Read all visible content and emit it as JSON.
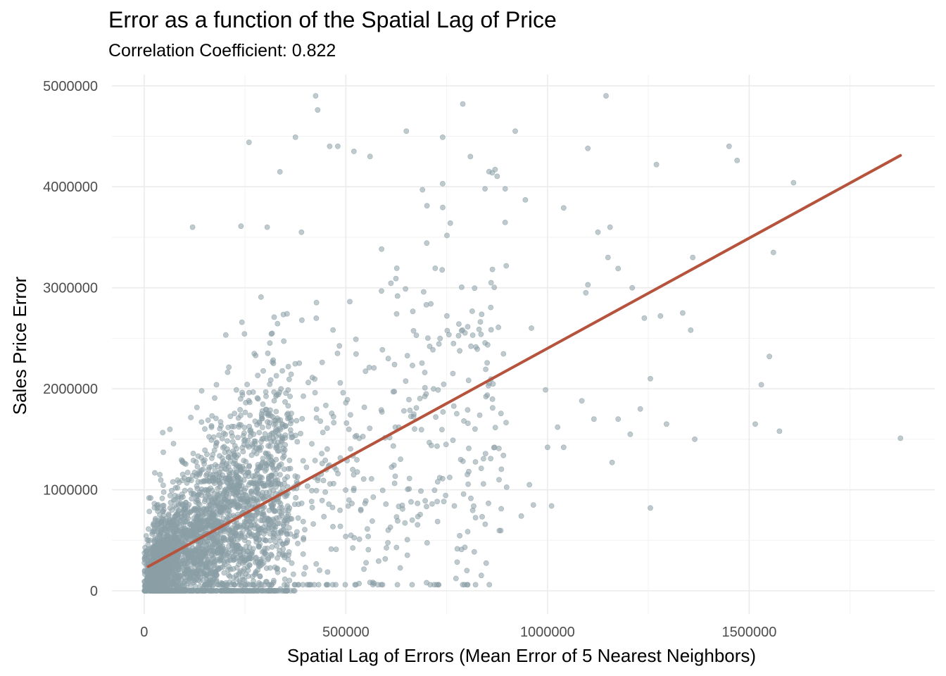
{
  "chart_data": {
    "type": "scatter",
    "title": "Error as a function of the Spatial Lag of Price",
    "subtitle": "Correlation Coefficient: 0.822",
    "xlabel": "Spatial Lag of Errors (Mean Error of 5 Nearest Neighbors)",
    "ylabel": "Sales Price Error",
    "xlim": [
      -80000,
      1960000
    ],
    "ylim": [
      -230000,
      5110000
    ],
    "xticks": [
      0,
      500000,
      1000000,
      1500000
    ],
    "xtick_labels": [
      "0",
      "500000",
      "1000000",
      "1500000"
    ],
    "yticks": [
      0,
      1000000,
      2000000,
      3000000,
      4000000,
      5000000
    ],
    "ytick_labels": [
      "0",
      "1000000",
      "2000000",
      "3000000",
      "4000000",
      "5000000"
    ],
    "grid": true,
    "legend": "none",
    "point_color": "#8a9ea5",
    "line_color": "#b5533c",
    "trend_line": {
      "x": [
        10000,
        1875000
      ],
      "y": [
        240000,
        4310000
      ]
    },
    "sampled_outer_points": [
      {
        "x": 425000,
        "y": 4900000
      },
      {
        "x": 430000,
        "y": 4760000
      },
      {
        "x": 790000,
        "y": 4820000
      },
      {
        "x": 1145000,
        "y": 4900000
      },
      {
        "x": 650000,
        "y": 4550000
      },
      {
        "x": 740000,
        "y": 4490000
      },
      {
        "x": 920000,
        "y": 4550000
      },
      {
        "x": 375000,
        "y": 4490000
      },
      {
        "x": 260000,
        "y": 4440000
      },
      {
        "x": 460000,
        "y": 4400000
      },
      {
        "x": 480000,
        "y": 4400000
      },
      {
        "x": 520000,
        "y": 4350000
      },
      {
        "x": 560000,
        "y": 4300000
      },
      {
        "x": 1100000,
        "y": 4380000
      },
      {
        "x": 1450000,
        "y": 4400000
      },
      {
        "x": 1470000,
        "y": 4260000
      },
      {
        "x": 1270000,
        "y": 4220000
      },
      {
        "x": 1610000,
        "y": 4040000
      },
      {
        "x": 855000,
        "y": 4150000
      },
      {
        "x": 870000,
        "y": 4170000
      },
      {
        "x": 690000,
        "y": 3970000
      },
      {
        "x": 740000,
        "y": 4030000
      },
      {
        "x": 845000,
        "y": 3980000
      },
      {
        "x": 895000,
        "y": 3980000
      },
      {
        "x": 1040000,
        "y": 3790000
      },
      {
        "x": 945000,
        "y": 3870000
      },
      {
        "x": 120000,
        "y": 3600000
      },
      {
        "x": 240000,
        "y": 3610000
      },
      {
        "x": 305000,
        "y": 3600000
      },
      {
        "x": 390000,
        "y": 3550000
      },
      {
        "x": 1155000,
        "y": 3600000
      },
      {
        "x": 1125000,
        "y": 3550000
      },
      {
        "x": 1360000,
        "y": 3300000
      },
      {
        "x": 1560000,
        "y": 3350000
      },
      {
        "x": 1150000,
        "y": 3300000
      },
      {
        "x": 1175000,
        "y": 3190000
      },
      {
        "x": 1100000,
        "y": 3030000
      },
      {
        "x": 1095000,
        "y": 2950000
      },
      {
        "x": 1210000,
        "y": 3000000
      },
      {
        "x": 1240000,
        "y": 2700000
      },
      {
        "x": 1280000,
        "y": 2720000
      },
      {
        "x": 1335000,
        "y": 2750000
      },
      {
        "x": 1355000,
        "y": 2580000
      },
      {
        "x": 1550000,
        "y": 2320000
      },
      {
        "x": 1530000,
        "y": 2040000
      },
      {
        "x": 1255000,
        "y": 2100000
      },
      {
        "x": 1515000,
        "y": 1650000
      },
      {
        "x": 1575000,
        "y": 1580000
      },
      {
        "x": 1875000,
        "y": 1510000
      },
      {
        "x": 1295000,
        "y": 1650000
      },
      {
        "x": 1365000,
        "y": 1500000
      },
      {
        "x": 1230000,
        "y": 1800000
      },
      {
        "x": 1205000,
        "y": 1550000
      },
      {
        "x": 1175000,
        "y": 1700000
      },
      {
        "x": 1160000,
        "y": 1270000
      },
      {
        "x": 1255000,
        "y": 820000
      },
      {
        "x": 1000000,
        "y": 1420000
      },
      {
        "x": 1025000,
        "y": 1620000
      },
      {
        "x": 1040000,
        "y": 1420000
      },
      {
        "x": 1115000,
        "y": 1700000
      },
      {
        "x": 995000,
        "y": 1990000
      },
      {
        "x": 1085000,
        "y": 1880000
      },
      {
        "x": 955000,
        "y": 1050000
      },
      {
        "x": 965000,
        "y": 850000
      },
      {
        "x": 1010000,
        "y": 840000
      },
      {
        "x": 935000,
        "y": 740000
      },
      {
        "x": 700000,
        "y": 80000
      },
      {
        "x": 800000,
        "y": 200000
      },
      {
        "x": 795000,
        "y": 430000
      },
      {
        "x": 605000,
        "y": 600000
      },
      {
        "x": 960000,
        "y": 2600000
      },
      {
        "x": 860000,
        "y": 3050000
      }
    ]
  }
}
